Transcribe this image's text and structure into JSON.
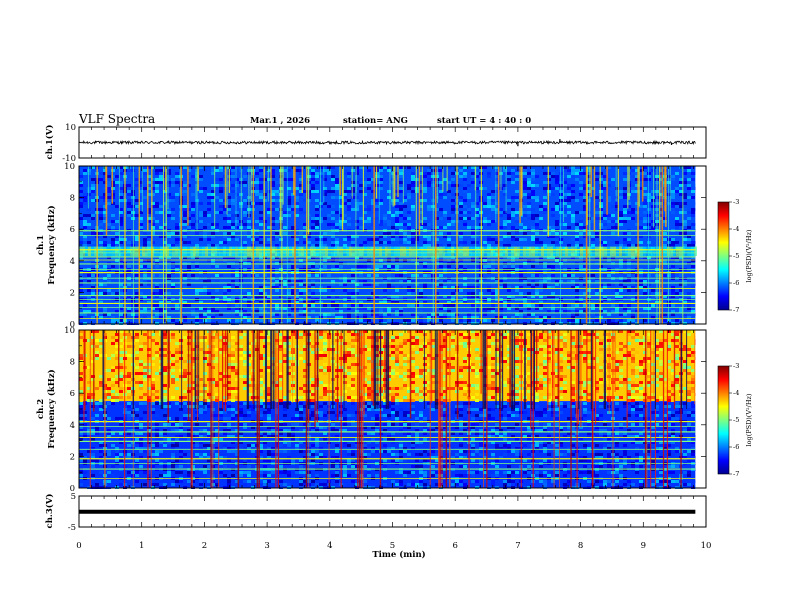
{
  "header": {
    "title": "VLF Spectra",
    "date": "Mar.1  , 2026",
    "station": "station= ANG",
    "start_time": "start  UT =   4 : 40 : 0"
  },
  "chart_data": [
    {
      "type": "line",
      "name": "ch1-waveform",
      "title": "",
      "ylabel": "ch.1(V)",
      "ylim": [
        -10,
        10
      ],
      "yticks": [
        "10",
        "-10"
      ],
      "xlim": [
        0,
        10
      ],
      "baseline": 0,
      "noise_amplitude": 0.9,
      "data_end_min": 9.83,
      "spikes": [
        {
          "x": 7.0,
          "y": -2.4
        },
        {
          "x": 7.67,
          "y": 2.2
        },
        {
          "x": 9.45,
          "y": -1.6
        }
      ]
    },
    {
      "type": "heatmap",
      "name": "ch1-spectrogram",
      "ylabel": "ch.1\nFrequency (kHz)",
      "ylim": [
        0,
        10
      ],
      "yticks": [
        "0",
        "2",
        "4",
        "6",
        "8",
        "10"
      ],
      "xlim": [
        0,
        10
      ],
      "data_end_min": 9.83,
      "colorbar": {
        "label": "log(PSD)(V²/Hz)",
        "range": [
          -7,
          -3
        ],
        "ticks": [
          "-3",
          "-4",
          "-5",
          "-6",
          "-7"
        ]
      },
      "background_level": -6.2,
      "narrowband_lines_khz": [
        0.35,
        0.7,
        1.05,
        1.3,
        1.55,
        1.8,
        2.25,
        2.6,
        2.9,
        3.25,
        3.45,
        3.8,
        4.05,
        4.25,
        4.5,
        4.7,
        5.6,
        5.9
      ],
      "strong_band_khz": [
        4.3,
        4.9
      ]
    },
    {
      "type": "heatmap",
      "name": "ch2-spectrogram",
      "ylabel": "ch.2\nFrequency (kHz)",
      "ylim": [
        0,
        10
      ],
      "yticks": [
        "0",
        "2",
        "4",
        "6",
        "8",
        "10"
      ],
      "xlim": [
        0,
        10
      ],
      "data_end_min": 9.83,
      "colorbar": {
        "label": "log(PSD)(V²/Hz)",
        "range": [
          -7,
          -3
        ],
        "ticks": [
          "-3",
          "-4",
          "-5",
          "-6",
          "-7"
        ]
      },
      "high_band_level": -4.3,
      "low_band_level": -6.3,
      "transition_khz": 5.5,
      "narrowband_lines_khz": [
        0.6,
        1.2,
        1.55,
        1.85,
        2.45,
        2.95,
        3.2,
        3.55,
        3.9,
        4.2
      ]
    },
    {
      "type": "line",
      "name": "ch3-waveform",
      "ylabel": "ch.3(V)",
      "ylim": [
        -5,
        5
      ],
      "yticks": [
        "5",
        "-5"
      ],
      "xlim": [
        0,
        10
      ],
      "baseline": -0.1,
      "data_end_min": 9.83
    }
  ],
  "xaxis": {
    "label": "Time  (min)",
    "ticks": [
      "0",
      "1",
      "2",
      "3",
      "4",
      "5",
      "6",
      "7",
      "8",
      "9",
      "10"
    ]
  }
}
